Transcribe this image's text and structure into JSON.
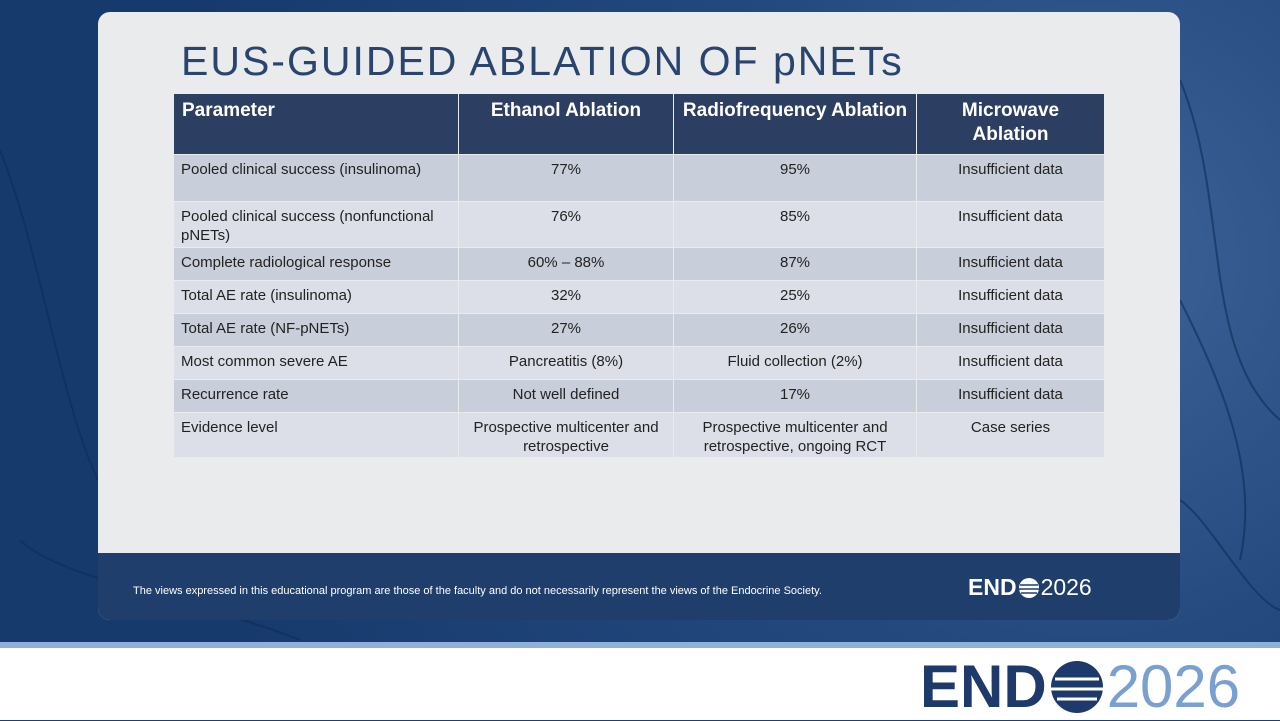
{
  "slide": {
    "title": "EUS-GUIDED ABLATION OF pNETs",
    "table": {
      "header": [
        "Parameter",
        "Ethanol Ablation",
        "Radiofrequency Ablation",
        "Microwave Ablation"
      ],
      "rows": [
        [
          "Pooled clinical success (insulinoma)",
          "77%",
          "95%",
          "Insufficient data"
        ],
        [
          "Pooled clinical success (nonfunctional pNETs)",
          "76%",
          "85%",
          "Insufficient data"
        ],
        [
          "Complete radiological response",
          "60% – 88%",
          "87%",
          "Insufficient data"
        ],
        [
          "Total AE rate (insulinoma)",
          "32%",
          "25%",
          "Insufficient data"
        ],
        [
          "Total AE rate (NF-pNETs)",
          "27%",
          "26%",
          "Insufficient data"
        ],
        [
          "Most common severe AE",
          "Pancreatitis (8%)",
          "Fluid collection (2%)",
          "Insufficient data"
        ],
        [
          "Recurrence rate",
          "Not well defined",
          "17%",
          "Insufficient data"
        ],
        [
          "Evidence level",
          "Prospective multicenter and retrospective",
          "Prospective multicenter and retrospective, ongoing RCT",
          "Case series"
        ]
      ]
    },
    "footer": {
      "disclaimer": "The views expressed in this educational program are those of the faculty and do not necessarily represent the views of the Endocrine Society.",
      "logo": {
        "left": "END",
        "right": "2026"
      }
    }
  },
  "banner": {
    "logo": {
      "left": "END",
      "right": "2026"
    }
  }
}
